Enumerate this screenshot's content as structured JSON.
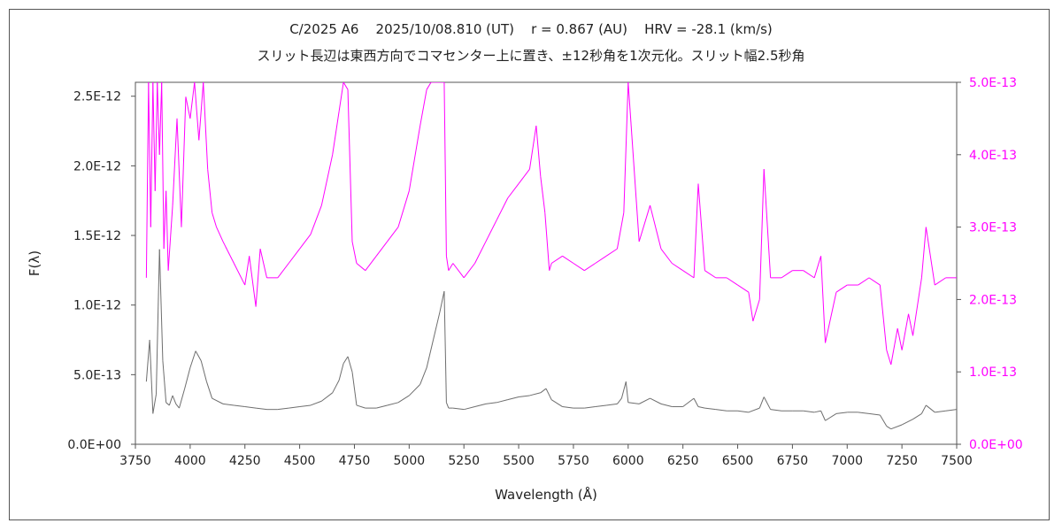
{
  "chart_data": {
    "type": "line",
    "title": "C/2025 A6    2025/10/08.810 (UT)    r = 0.867 (AU)    HRV = -28.1 (km/s)",
    "subtitle": "スリット長辺は東西方向でコマセンター上に置き、±12秒角を1次元化。スリット幅2.5秒角",
    "xlabel": "Wavelength (Å)",
    "ylabel": "F(λ)",
    "xlim": [
      3750,
      7500
    ],
    "ylim": [
      0,
      2.6e-12
    ],
    "y2lim": [
      0,
      5e-13
    ],
    "x_ticks": [
      3750,
      4000,
      4250,
      4500,
      4750,
      5000,
      5250,
      5500,
      5750,
      6000,
      6250,
      6500,
      6750,
      7000,
      7250,
      7500
    ],
    "y_tick_labels": [
      "0.0E+00",
      "5.0E-13",
      "1.0E-12",
      "1.5E-12",
      "2.0E-12",
      "2.5E-12"
    ],
    "y2_tick_labels": [
      "0.0E+00",
      "1.0E-13",
      "2.0E-13",
      "3.0E-13",
      "4.0E-13",
      "5.0E-13"
    ],
    "colors": {
      "primary": "#6e6e6e",
      "secondary": "#ff00ff",
      "frame": "#555555"
    },
    "series": [
      {
        "axis": "left",
        "color": "#6e6e6e",
        "x": [
          3800,
          3815,
          3830,
          3845,
          3860,
          3875,
          3890,
          3905,
          3920,
          3935,
          3950,
          3975,
          4000,
          4025,
          4050,
          4075,
          4100,
          4150,
          4200,
          4250,
          4300,
          4350,
          4400,
          4450,
          4500,
          4550,
          4600,
          4650,
          4680,
          4700,
          4720,
          4740,
          4760,
          4800,
          4850,
          4900,
          4950,
          5000,
          5050,
          5080,
          5110,
          5140,
          5160,
          5170,
          5180,
          5200,
          5250,
          5300,
          5350,
          5400,
          5450,
          5500,
          5550,
          5600,
          5625,
          5650,
          5700,
          5750,
          5800,
          5850,
          5900,
          5950,
          5970,
          5990,
          6000,
          6050,
          6100,
          6150,
          6200,
          6250,
          6300,
          6320,
          6350,
          6400,
          6450,
          6500,
          6550,
          6600,
          6620,
          6650,
          6700,
          6750,
          6800,
          6850,
          6880,
          6900,
          6950,
          7000,
          7050,
          7100,
          7150,
          7180,
          7200,
          7250,
          7300,
          7340,
          7360,
          7400,
          7450,
          7500
        ],
        "values": [
          4.5e-13,
          7.5e-13,
          2.2e-13,
          3.6e-13,
          1.4e-12,
          6e-13,
          3e-13,
          2.8e-13,
          3.5e-13,
          2.9e-13,
          2.6e-13,
          4e-13,
          5.5e-13,
          6.7e-13,
          6e-13,
          4.5e-13,
          3.3e-13,
          2.9e-13,
          2.8e-13,
          2.7e-13,
          2.6e-13,
          2.5e-13,
          2.5e-13,
          2.6e-13,
          2.7e-13,
          2.8e-13,
          3.1e-13,
          3.7e-13,
          4.6e-13,
          5.8e-13,
          6.3e-13,
          5.2e-13,
          2.8e-13,
          2.6e-13,
          2.6e-13,
          2.8e-13,
          3e-13,
          3.5e-13,
          4.3e-13,
          5.5e-13,
          7.5e-13,
          9.5e-13,
          1.1e-12,
          3e-13,
          2.6e-13,
          2.6e-13,
          2.5e-13,
          2.7e-13,
          2.9e-13,
          3e-13,
          3.2e-13,
          3.4e-13,
          3.5e-13,
          3.7e-13,
          4e-13,
          3.2e-13,
          2.7e-13,
          2.6e-13,
          2.6e-13,
          2.7e-13,
          2.8e-13,
          2.9e-13,
          3.3e-13,
          4.5e-13,
          3e-13,
          2.9e-13,
          3.3e-13,
          2.9e-13,
          2.7e-13,
          2.7e-13,
          3.3e-13,
          2.7e-13,
          2.6e-13,
          2.5e-13,
          2.4e-13,
          2.4e-13,
          2.3e-13,
          2.6e-13,
          3.4e-13,
          2.5e-13,
          2.4e-13,
          2.4e-13,
          2.4e-13,
          2.3e-13,
          2.4e-13,
          1.7e-13,
          2.2e-13,
          2.3e-13,
          2.3e-13,
          2.2e-13,
          2.1e-13,
          1.3e-13,
          1.1e-13,
          1.4e-13,
          1.8e-13,
          2.2e-13,
          2.8e-13,
          2.3e-13,
          2.4e-13,
          2.5e-13
        ]
      },
      {
        "axis": "right",
        "color": "#ff00ff",
        "x": [
          3800,
          3810,
          3820,
          3830,
          3840,
          3850,
          3860,
          3870,
          3880,
          3890,
          3900,
          3920,
          3940,
          3960,
          3980,
          4000,
          4020,
          4040,
          4060,
          4080,
          4100,
          4120,
          4150,
          4200,
          4250,
          4270,
          4300,
          4320,
          4350,
          4400,
          4450,
          4500,
          4550,
          4600,
          4650,
          4680,
          4700,
          4720,
          4740,
          4760,
          4800,
          4850,
          4900,
          4950,
          5000,
          5050,
          5080,
          5100,
          5150,
          5160,
          5170,
          5180,
          5200,
          5250,
          5300,
          5350,
          5400,
          5450,
          5500,
          5550,
          5580,
          5600,
          5620,
          5640,
          5650,
          5700,
          5750,
          5800,
          5850,
          5900,
          5950,
          5980,
          6000,
          6050,
          6100,
          6150,
          6200,
          6250,
          6300,
          6320,
          6350,
          6400,
          6450,
          6500,
          6550,
          6570,
          6600,
          6620,
          6650,
          6700,
          6750,
          6800,
          6850,
          6880,
          6900,
          6950,
          7000,
          7050,
          7100,
          7150,
          7180,
          7200,
          7230,
          7250,
          7280,
          7300,
          7340,
          7360,
          7400,
          7450,
          7500
        ],
        "values": [
          2.3e-13,
          5e-13,
          3e-13,
          5e-13,
          3.5e-13,
          5e-13,
          4e-13,
          5e-13,
          2.7e-13,
          3.5e-13,
          2.4e-13,
          3.3e-13,
          4.5e-13,
          3e-13,
          4.8e-13,
          4.5e-13,
          5e-13,
          4.2e-13,
          5e-13,
          3.8e-13,
          3.2e-13,
          3e-13,
          2.8e-13,
          2.5e-13,
          2.2e-13,
          2.6e-13,
          1.9e-13,
          2.7e-13,
          2.3e-13,
          2.3e-13,
          2.5e-13,
          2.7e-13,
          2.9e-13,
          3.3e-13,
          4e-13,
          4.6e-13,
          5e-13,
          4.9e-13,
          2.8e-13,
          2.5e-13,
          2.4e-13,
          2.6e-13,
          2.8e-13,
          3e-13,
          3.5e-13,
          4.4e-13,
          4.9e-13,
          5e-13,
          5e-13,
          5e-13,
          2.6e-13,
          2.4e-13,
          2.5e-13,
          2.3e-13,
          2.5e-13,
          2.8e-13,
          3.1e-13,
          3.4e-13,
          3.6e-13,
          3.8e-13,
          4.4e-13,
          3.7e-13,
          3.2e-13,
          2.4e-13,
          2.5e-13,
          2.6e-13,
          2.5e-13,
          2.4e-13,
          2.5e-13,
          2.6e-13,
          2.7e-13,
          3.2e-13,
          5e-13,
          2.8e-13,
          3.3e-13,
          2.7e-13,
          2.5e-13,
          2.4e-13,
          2.3e-13,
          3.6e-13,
          2.4e-13,
          2.3e-13,
          2.3e-13,
          2.2e-13,
          2.1e-13,
          1.7e-13,
          2e-13,
          3.8e-13,
          2.3e-13,
          2.3e-13,
          2.4e-13,
          2.4e-13,
          2.3e-13,
          2.6e-13,
          1.4e-13,
          2.1e-13,
          2.2e-13,
          2.2e-13,
          2.3e-13,
          2.2e-13,
          1.3e-13,
          1.1e-13,
          1.6e-13,
          1.3e-13,
          1.8e-13,
          1.5e-13,
          2.3e-13,
          3e-13,
          2.2e-13,
          2.3e-13,
          2.3e-13
        ]
      }
    ]
  }
}
